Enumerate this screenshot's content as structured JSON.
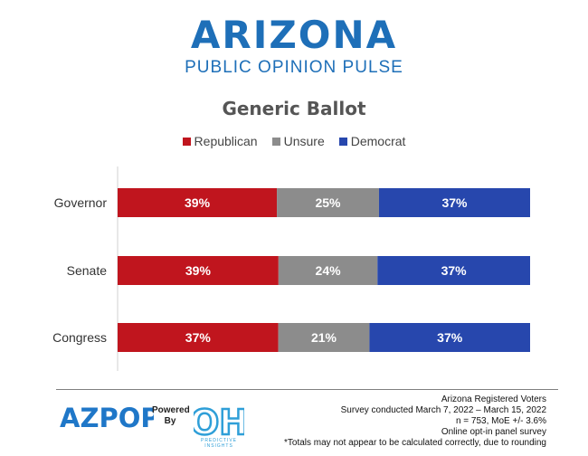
{
  "brand": {
    "title": "ARIZONA",
    "subtitle": "PUBLIC OPINION PULSE"
  },
  "chart_data": {
    "type": "bar",
    "orientation": "horizontal",
    "stacked": true,
    "title": "Generic Ballot",
    "legend_position": "top",
    "categories": [
      "Governor",
      "Senate",
      "Congress"
    ],
    "series": [
      {
        "name": "Republican",
        "color": "#c0151e",
        "values": [
          39,
          39,
          37
        ]
      },
      {
        "name": "Unsure",
        "color": "#8c8c8c",
        "values": [
          25,
          24,
          21
        ]
      },
      {
        "name": "Democrat",
        "color": "#2747ad",
        "values": [
          37,
          37,
          37
        ]
      }
    ],
    "value_suffix": "%",
    "grid": false
  },
  "footer": {
    "az_logo_text": "AZPOP",
    "powered_line1": "Powered",
    "powered_line2": "By",
    "oh_logo_text": "OH",
    "oh_caption": "PREDICTIVE INSIGHTS",
    "notes": [
      "Arizona Registered Voters",
      "Survey conducted March 7, 2022 – March 15, 2022",
      "n = 753, MoE +/- 3.6%",
      "Online opt-in panel survey",
      "*Totals may not appear to be calculated correctly, due to rounding"
    ]
  }
}
